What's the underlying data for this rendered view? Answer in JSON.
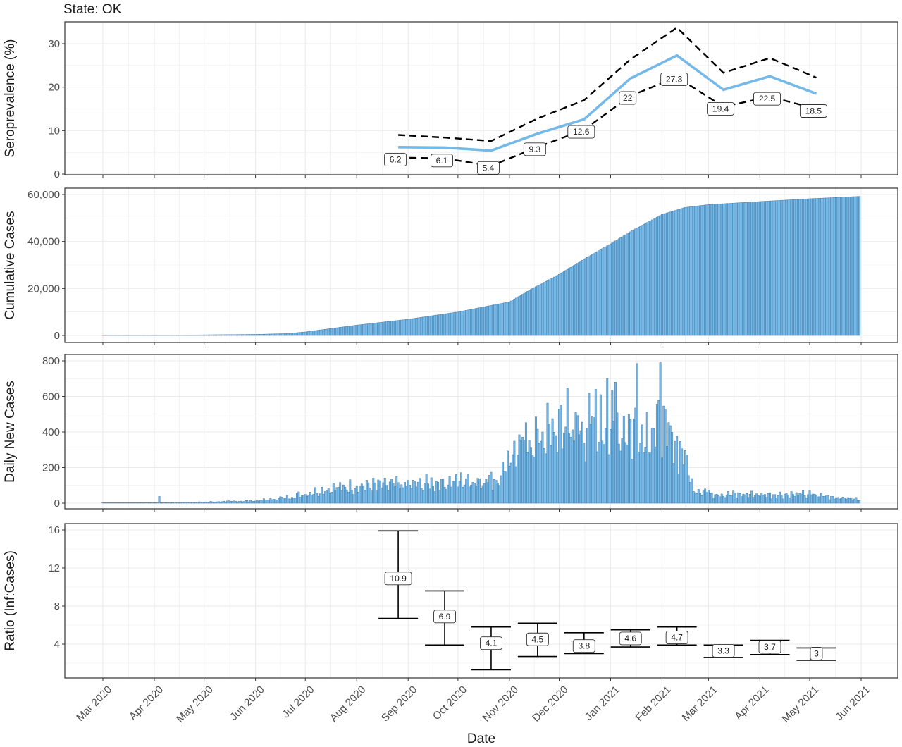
{
  "title": "State: OK",
  "xlabel": "Date",
  "x_ticks": [
    "Mar 2020",
    "Apr 2020",
    "May 2020",
    "Jun 2020",
    "Jul 2020",
    "Aug 2020",
    "Sep 2020",
    "Oct 2020",
    "Nov 2020",
    "Dec 2020",
    "Jan 2021",
    "Feb 2021",
    "Mar 2021",
    "Apr 2021",
    "May 2021",
    "Jun 2021"
  ],
  "colors": {
    "line": "#74b9e7",
    "bar_fill": "#74b9e7",
    "bar_edge": "#4a7aa6",
    "ci": "#000000",
    "grid": "#ebebeb",
    "panel_border": "#333333"
  },
  "chart_data": [
    {
      "type": "line",
      "ylabel": "Seroprevalence (%)",
      "y_ticks": [
        "0",
        "10",
        "20",
        "30"
      ],
      "ylim": [
        0,
        35
      ],
      "x": [
        "2020-08-26",
        "2020-09-23",
        "2020-10-21",
        "2020-11-18",
        "2020-12-16",
        "2021-01-13",
        "2021-02-10",
        "2021-03-10",
        "2021-04-07",
        "2021-05-05"
      ],
      "series": [
        {
          "role": "estimate",
          "values": [
            6.2,
            6.1,
            5.4,
            9.3,
            12.6,
            22,
            27.3,
            19.4,
            22.5,
            18.5
          ]
        },
        {
          "role": "upper",
          "values": [
            9.0,
            8.4,
            7.6,
            12.8,
            17.0,
            26.4,
            33.7,
            23.3,
            26.7,
            22.2
          ]
        },
        {
          "role": "lower",
          "values": [
            3.8,
            3.6,
            1.9,
            6.2,
            10.2,
            18.0,
            22.3,
            15.5,
            17.8,
            15.0
          ]
        }
      ],
      "point_labels": [
        "6.2",
        "6.1",
        "5.4",
        "9.3",
        "12.6",
        "22",
        "27.3",
        "19.4",
        "22.5",
        "18.5"
      ]
    },
    {
      "type": "bar",
      "ylabel": "Cumulative Cases",
      "y_ticks": [
        "0",
        "20,000",
        "40,000",
        "60,000"
      ],
      "ylim": [
        0,
        62000
      ],
      "date_range": [
        "2020-03-01",
        "2021-05-31"
      ],
      "anchors": [
        [
          "2020-03-01",
          0
        ],
        [
          "2020-04-01",
          100
        ],
        [
          "2020-05-01",
          250
        ],
        [
          "2020-06-01",
          450
        ],
        [
          "2020-06-20",
          800
        ],
        [
          "2020-07-01",
          1500
        ],
        [
          "2020-08-01",
          4400
        ],
        [
          "2020-09-01",
          6900
        ],
        [
          "2020-10-01",
          10000
        ],
        [
          "2020-11-01",
          14300
        ],
        [
          "2020-11-15",
          20000
        ],
        [
          "2020-12-01",
          26000
        ],
        [
          "2020-12-15",
          32000
        ],
        [
          "2021-01-01",
          39000
        ],
        [
          "2021-01-15",
          45000
        ],
        [
          "2021-02-01",
          51500
        ],
        [
          "2021-02-15",
          54500
        ],
        [
          "2021-03-01",
          55700
        ],
        [
          "2021-04-01",
          57000
        ],
        [
          "2021-05-01",
          58200
        ],
        [
          "2021-05-31",
          59200
        ]
      ]
    },
    {
      "type": "bar",
      "ylabel": "Daily New Cases",
      "y_ticks": [
        "0",
        "200",
        "400",
        "600",
        "800"
      ],
      "ylim": [
        0,
        830
      ],
      "date_range": [
        "2020-03-01",
        "2021-05-31"
      ],
      "anchors": [
        [
          "2020-03-01",
          0
        ],
        [
          "2020-04-01",
          3
        ],
        [
          "2020-05-01",
          6
        ],
        [
          "2020-06-01",
          12
        ],
        [
          "2020-06-20",
          30
        ],
        [
          "2020-07-15",
          75
        ],
        [
          "2020-08-01",
          90
        ],
        [
          "2020-09-01",
          95
        ],
        [
          "2020-10-01",
          115
        ],
        [
          "2020-10-25",
          125
        ],
        [
          "2020-11-01",
          250
        ],
        [
          "2020-11-15",
          340
        ],
        [
          "2020-12-01",
          380
        ],
        [
          "2020-12-20",
          400
        ],
        [
          "2021-01-10",
          400
        ],
        [
          "2021-01-31",
          380
        ],
        [
          "2021-02-10",
          310
        ],
        [
          "2021-02-15",
          240
        ],
        [
          "2021-02-20",
          75
        ],
        [
          "2021-03-10",
          45
        ],
        [
          "2021-04-01",
          45
        ],
        [
          "2021-05-01",
          45
        ],
        [
          "2021-05-31",
          20
        ]
      ],
      "peaks": [
        [
          "2020-04-04",
          38
        ],
        [
          "2021-01-17",
          785
        ],
        [
          "2021-01-31",
          790
        ],
        [
          "2020-12-30",
          700
        ],
        [
          "2021-01-04",
          680
        ],
        [
          "2020-12-06",
          645
        ],
        [
          "2020-12-23",
          640
        ]
      ],
      "ymax_shown": 800
    },
    {
      "type": "errorbar",
      "ylabel": "Ratio (Inf:Cases)",
      "y_ticks": [
        "4",
        "8",
        "12",
        "16"
      ],
      "ylim": [
        1,
        16.5
      ],
      "x": [
        "2020-08-26",
        "2020-09-23",
        "2020-10-21",
        "2020-11-18",
        "2020-12-16",
        "2021-01-13",
        "2021-02-10",
        "2021-03-10",
        "2021-04-07",
        "2021-05-05"
      ],
      "values": [
        10.9,
        6.9,
        4.1,
        4.5,
        3.8,
        4.6,
        4.7,
        3.3,
        3.7,
        3.0
      ],
      "lower": [
        6.7,
        3.9,
        1.3,
        2.7,
        3.0,
        3.7,
        3.9,
        2.6,
        2.9,
        2.3
      ],
      "upper": [
        15.9,
        9.6,
        5.8,
        6.2,
        5.2,
        5.5,
        5.8,
        3.9,
        4.4,
        3.6
      ],
      "point_labels": [
        "10.9",
        "6.9",
        "4.1",
        "4.5",
        "3.8",
        "4.6",
        "4.7",
        "3.3",
        "3.7",
        "3"
      ]
    }
  ]
}
